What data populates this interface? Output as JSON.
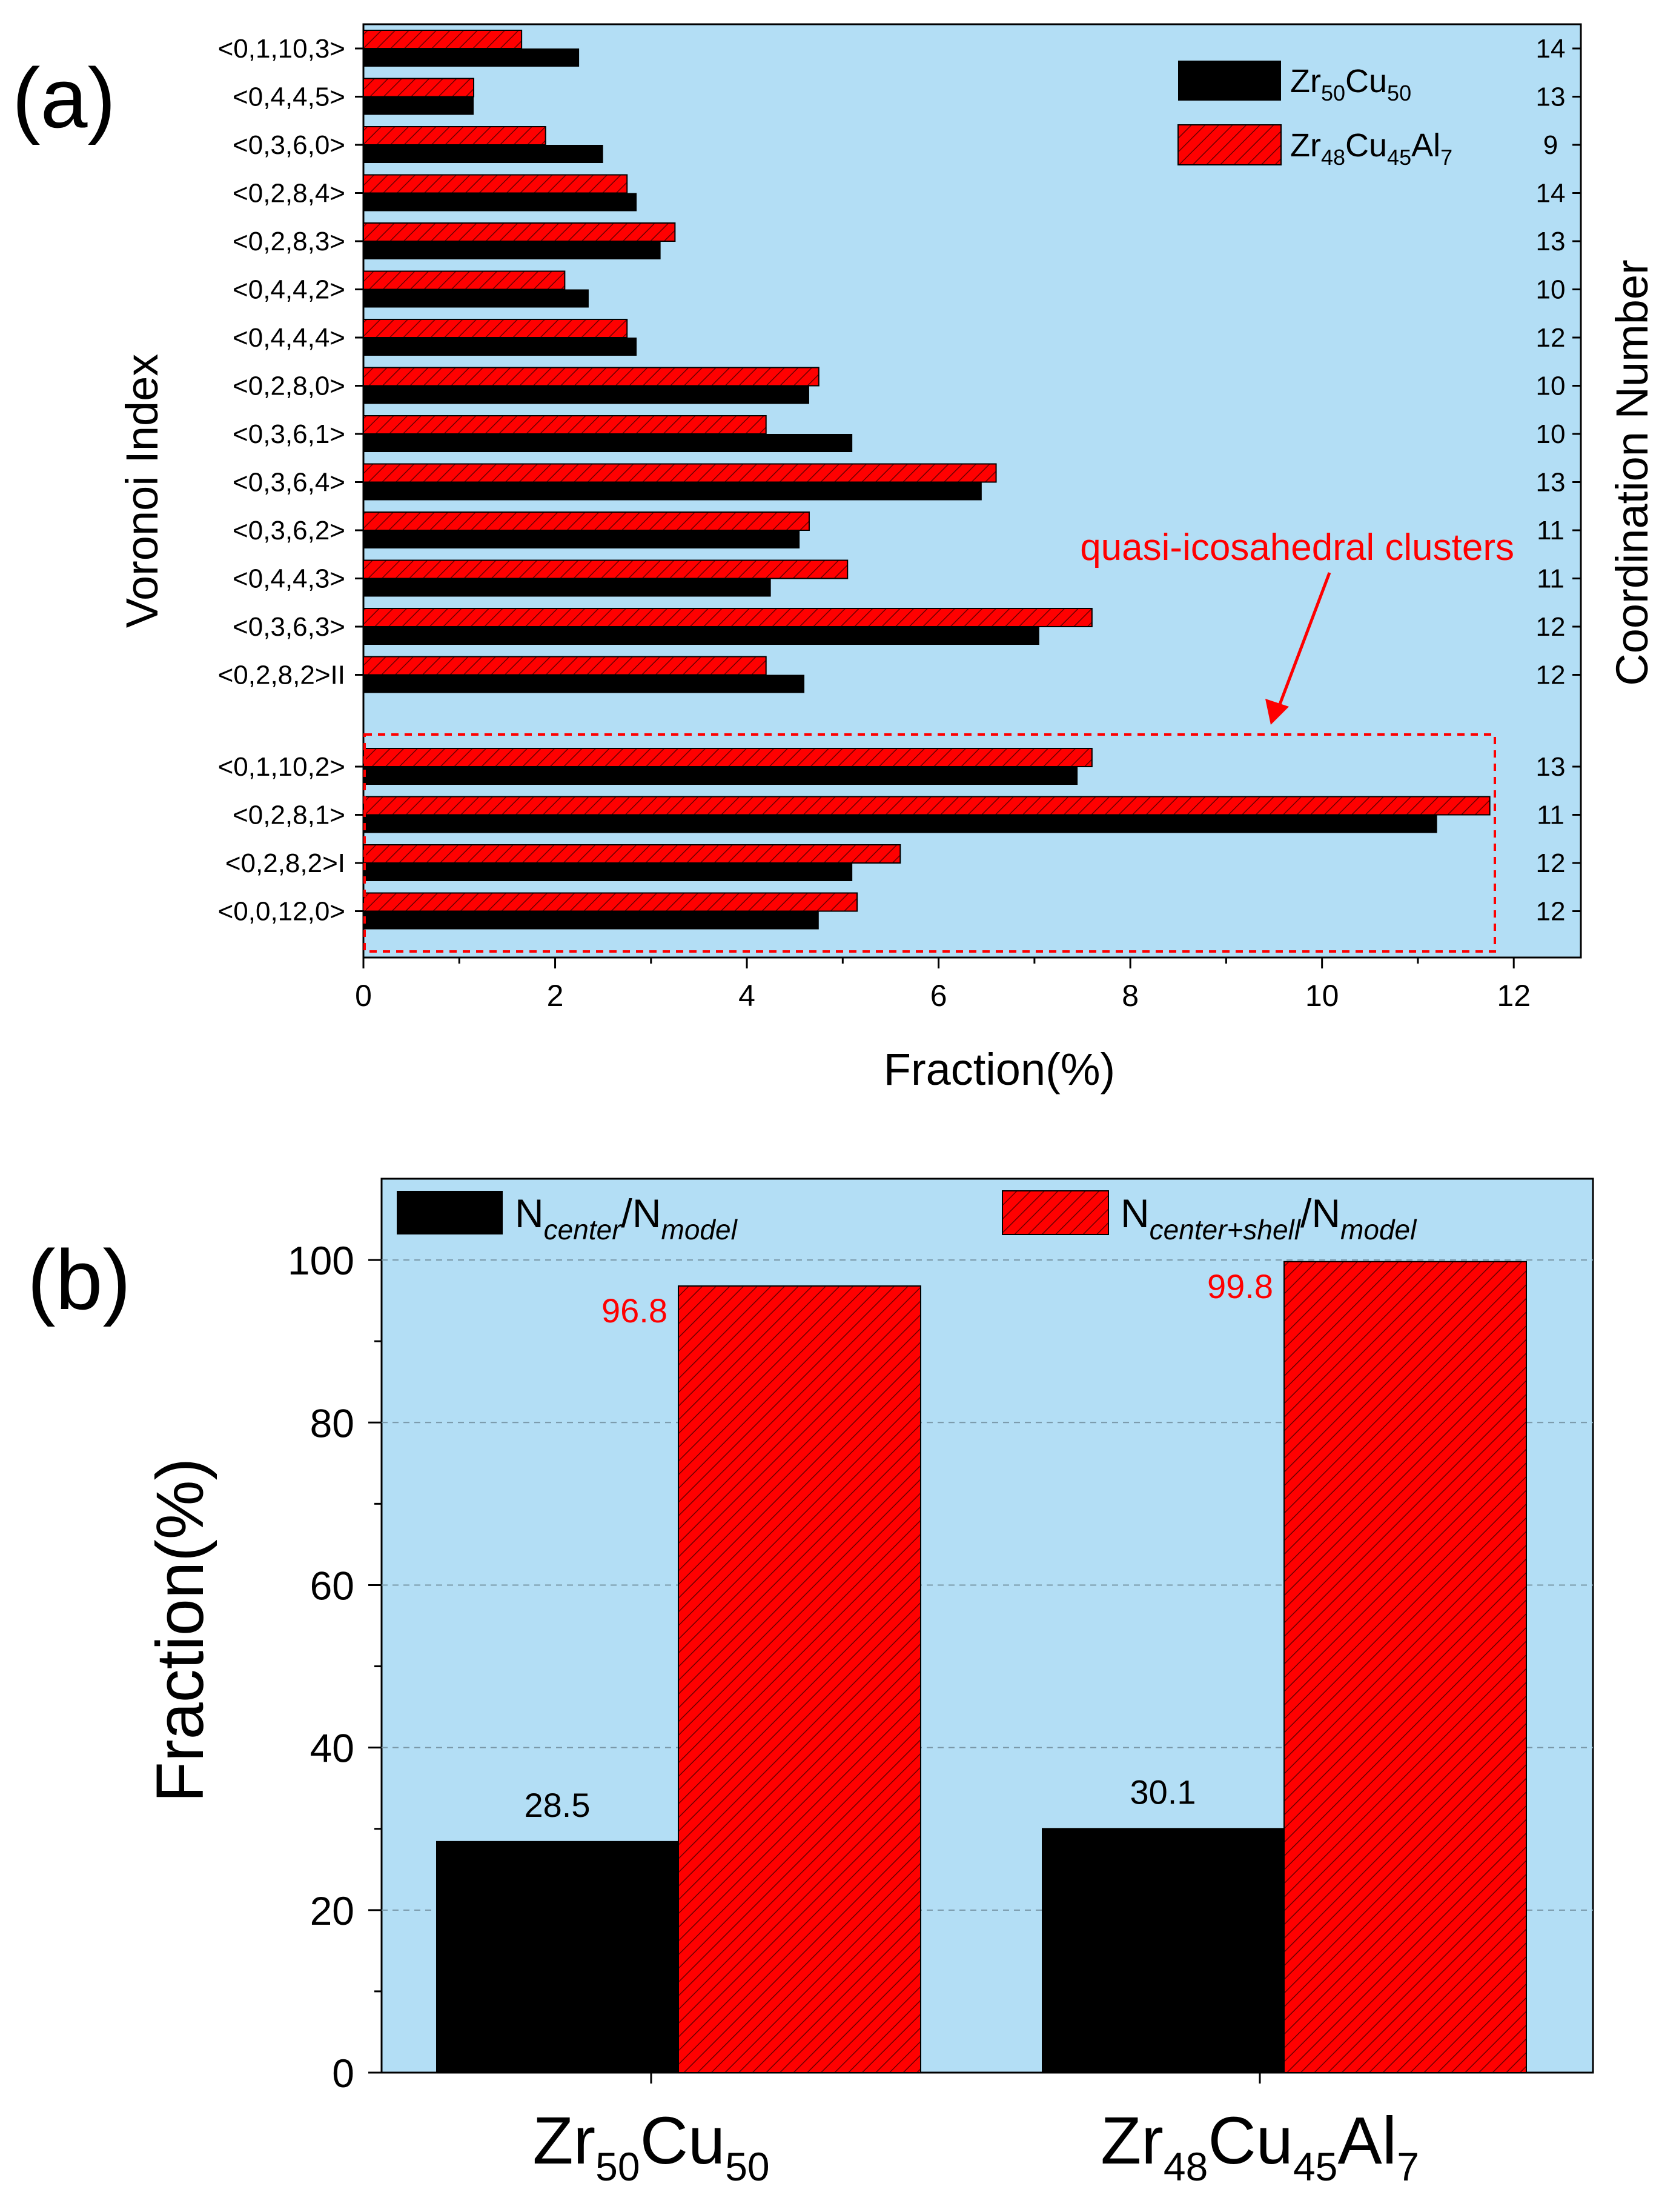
{
  "chart_data": [
    {
      "type": "bar",
      "orientation": "horizontal",
      "panel_label": "(a)",
      "xlabel": "Fraction(%)",
      "ylabel": "Voronoi Index",
      "y2label": "Coordination Number",
      "xlim": [
        0,
        12.7
      ],
      "xticks": [
        "0",
        "2",
        "4",
        "6",
        "8",
        "10",
        "12"
      ],
      "categories": [
        "<0,1,10,3>",
        "<0,4,4,5>",
        "<0,3,6,0>",
        "<0,2,8,4>",
        "<0,2,8,3>",
        "<0,4,4,2>",
        "<0,4,4,4>",
        "<0,2,8,0>",
        "<0,3,6,1>",
        "<0,3,6,4>",
        "<0,3,6,2>",
        "<0,4,4,3>",
        "<0,3,6,3>",
        "<0,2,8,2>II",
        "<0,1,10,2>",
        "<0,2,8,1>",
        "<0,2,8,2>I",
        "<0,0,12,0>"
      ],
      "coordination_numbers": [
        "14",
        "13",
        "9",
        "14",
        "13",
        "10",
        "12",
        "10",
        "10",
        "13",
        "11",
        "11",
        "12",
        "12",
        "13",
        "11",
        "12",
        "12"
      ],
      "series": [
        {
          "name": "Zr50Cu50",
          "label_parts": [
            "Zr",
            "50",
            "Cu",
            "50"
          ],
          "color": "#000000",
          "values": [
            2.25,
            1.15,
            2.5,
            2.85,
            3.1,
            2.35,
            2.85,
            4.65,
            5.1,
            6.45,
            4.55,
            4.25,
            7.05,
            4.6,
            7.45,
            11.2,
            5.1,
            4.75
          ]
        },
        {
          "name": "Zr48Cu45Al7",
          "label_parts": [
            "Zr",
            "48",
            "Cu",
            "45",
            "Al",
            "7"
          ],
          "color": "#ff0000",
          "values": [
            1.65,
            1.15,
            1.9,
            2.75,
            3.25,
            2.1,
            2.75,
            4.75,
            4.2,
            6.6,
            4.65,
            5.05,
            7.6,
            4.2,
            7.6,
            11.75,
            5.6,
            5.15
          ]
        }
      ],
      "annotation": "quasi-icosahedral clusters"
    },
    {
      "type": "bar",
      "panel_label": "(b)",
      "ylabel": "Fraction(%)",
      "ylim": [
        0,
        110
      ],
      "yticks": [
        "0",
        "20",
        "40",
        "60",
        "80",
        "100"
      ],
      "categories": [
        "Zr50Cu50",
        "Zr48Cu45Al7"
      ],
      "category_parts": [
        [
          "Zr",
          "50",
          "Cu",
          "50"
        ],
        [
          "Zr",
          "48",
          "Cu",
          "45",
          "Al",
          "7"
        ]
      ],
      "series": [
        {
          "name": "N_center/N_model",
          "label_parts": [
            "N",
            "center",
            "/N",
            "model"
          ],
          "color": "#000000",
          "values": [
            28.5,
            30.1
          ],
          "value_labels": [
            "28.5",
            "30.1"
          ]
        },
        {
          "name": "N_center+shell/N_model",
          "label_parts": [
            "N",
            "center+shell",
            "/N",
            "model"
          ],
          "color": "#ff0000",
          "values": [
            96.8,
            99.8
          ],
          "value_labels": [
            "96.8",
            "99.8"
          ]
        }
      ]
    }
  ],
  "colors": {
    "plot_background": "#b3def5",
    "series_black": "#000000",
    "series_red": "#ff0000",
    "annotation": "#ff0000"
  }
}
